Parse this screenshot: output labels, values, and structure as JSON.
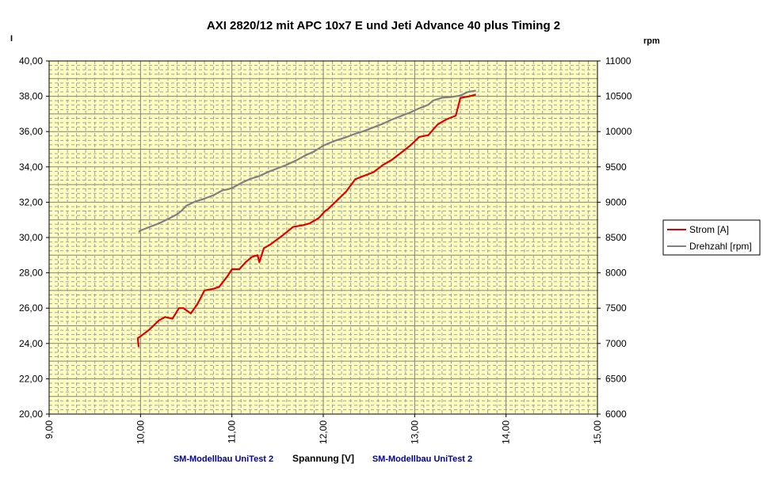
{
  "chart_data": {
    "type": "line",
    "title": "AXI 2820/12 mit APC 10x7 E und Jeti Advance 40 plus Timing 2",
    "xlabel": "Spannung [V]",
    "ylabel_left": "I",
    "ylabel_right": "rpm",
    "xlim": [
      9,
      15
    ],
    "ylim_left": [
      20,
      40
    ],
    "ylim_right": [
      6000,
      11000
    ],
    "x_ticks": [
      "9,00",
      "10,00",
      "11,00",
      "12,00",
      "13,00",
      "14,00",
      "15,00"
    ],
    "y_left_ticks": [
      "20,00",
      "22,00",
      "24,00",
      "26,00",
      "28,00",
      "30,00",
      "32,00",
      "34,00",
      "36,00",
      "38,00",
      "40,00"
    ],
    "y_right_ticks": [
      "6000",
      "6500",
      "7000",
      "7500",
      "8000",
      "8500",
      "9000",
      "9500",
      "10000",
      "10500",
      "11000"
    ],
    "grid": true,
    "plot_background": "#ffffc0",
    "legend_position": "right",
    "series": [
      {
        "name": "Strom [A]",
        "axis": "left",
        "color": "#e00000",
        "x": [
          9.98,
          9.97,
          10.0,
          10.1,
          10.2,
          10.27,
          10.35,
          10.42,
          10.47,
          10.55,
          10.62,
          10.7,
          10.8,
          10.86,
          10.95,
          11.0,
          11.08,
          11.15,
          11.22,
          11.28,
          11.3,
          11.35,
          11.42,
          11.55,
          11.67,
          11.78,
          11.85,
          11.95,
          12.02,
          12.05,
          12.15,
          12.25,
          12.35,
          12.45,
          12.55,
          12.65,
          12.75,
          12.85,
          12.95,
          13.05,
          13.15,
          13.25,
          13.35,
          13.45,
          13.5,
          13.6,
          13.67
        ],
        "values": [
          23.8,
          24.3,
          24.4,
          24.8,
          25.3,
          25.5,
          25.4,
          26.0,
          26.0,
          25.7,
          26.2,
          27.0,
          27.1,
          27.2,
          27.8,
          28.2,
          28.2,
          28.6,
          28.9,
          29.0,
          28.6,
          29.4,
          29.6,
          30.1,
          30.6,
          30.7,
          30.8,
          31.1,
          31.5,
          31.6,
          32.1,
          32.6,
          33.3,
          33.5,
          33.7,
          34.1,
          34.4,
          34.8,
          35.2,
          35.7,
          35.8,
          36.4,
          36.7,
          36.9,
          37.9,
          38.0,
          38.1
        ]
      },
      {
        "name": "Drehzahl [rpm]",
        "axis": "right",
        "color": "#808080",
        "x": [
          9.98,
          10.0,
          10.1,
          10.2,
          10.3,
          10.4,
          10.45,
          10.5,
          10.6,
          10.7,
          10.8,
          10.9,
          10.95,
          11.0,
          11.1,
          11.2,
          11.3,
          11.4,
          11.5,
          11.6,
          11.7,
          11.8,
          11.9,
          12.0,
          12.05,
          12.15,
          12.25,
          12.35,
          12.45,
          12.55,
          12.65,
          12.75,
          12.85,
          12.95,
          13.05,
          13.15,
          13.2,
          13.3,
          13.4,
          13.5,
          13.58,
          13.67
        ],
        "values": [
          8580,
          8600,
          8650,
          8700,
          8760,
          8830,
          8880,
          8950,
          9010,
          9050,
          9100,
          9170,
          9180,
          9200,
          9270,
          9330,
          9370,
          9430,
          9480,
          9530,
          9590,
          9660,
          9720,
          9800,
          9830,
          9880,
          9920,
          9970,
          10010,
          10060,
          10110,
          10170,
          10220,
          10270,
          10330,
          10380,
          10440,
          10480,
          10490,
          10510,
          10560,
          10580
        ]
      }
    ],
    "footer_left": "SM-Modellbau UniTest 2",
    "footer_right": "SM-Modellbau UniTest 2"
  }
}
